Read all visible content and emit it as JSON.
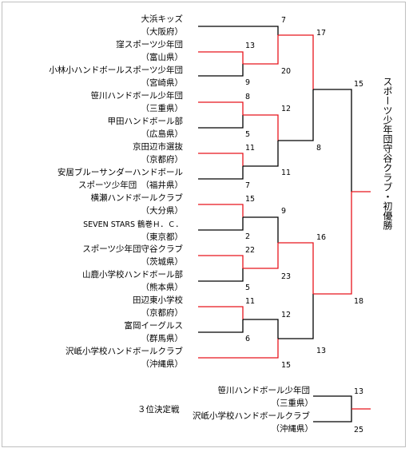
{
  "teams": [
    {
      "name": "大浜キッズ",
      "pref": "（大阪府）"
    },
    {
      "name": "窪スポーツ少年団",
      "pref": "（富山県）"
    },
    {
      "name": "小林小ハンドボールスポーツ少年団",
      "pref": "（宮崎県）"
    },
    {
      "name": "笹川ハンドボール少年団",
      "pref": "（三重県）"
    },
    {
      "name": "甲田ハンドボール部",
      "pref": "（広島県）"
    },
    {
      "name": "京田辺市選抜",
      "pref": "（京都府）"
    },
    {
      "name": "安居ブルーサンダーハンドボール",
      "pref": "スポーツ少年団　（福井県）"
    },
    {
      "name": "横瀬ハンドボールクラブ",
      "pref": "（大分県）"
    },
    {
      "name": "SEVEN STARS 鶴巻Ｈ．Ｃ．",
      "pref": "（東京都）"
    },
    {
      "name": "スポーツ少年団守谷クラブ",
      "pref": "（茨城県）"
    },
    {
      "name": "山鹿小学校ハンドボール部",
      "pref": "（熊本県）"
    },
    {
      "name": "田辺東小学校",
      "pref": "（京都府）"
    },
    {
      "name": "富岡イーグルス",
      "pref": "（群馬県）"
    },
    {
      "name": "沢岻小学校ハンドボールクラブ",
      "pref": "（沖縄県）"
    }
  ],
  "scores": {
    "r1_a1": "7",
    "r1_a2": "13",
    "r1_a3": "9",
    "r1_b1": "8",
    "r1_b2": "5",
    "r1_c1": "11",
    "r1_c2": "7",
    "r1_d1": "15",
    "r1_d2": "2",
    "r1_e1": "22",
    "r1_e2": "5",
    "r1_f1": "11",
    "r1_f2": "6",
    "r2_a1": "17",
    "r2_a2": "20",
    "r2_b1": "12",
    "r2_b2": "11",
    "r2_c1": "9",
    "r2_c2": "23",
    "r2_d1": "12",
    "r2_d2": "13",
    "r3_top1": "8",
    "r3_bot1": "16",
    "r3_bot2": "15",
    "final_top": "15",
    "final_bot": "18",
    "third_1": "13",
    "third_2": "25"
  },
  "champion": "スポーツ少年団守谷クラブ・初優勝",
  "third_place": {
    "title": "３位決定戦",
    "team1": {
      "name": "笹川ハンドボール少年団",
      "pref": "（三重県）"
    },
    "team2": {
      "name": "沢岻小学校ハンドボールクラブ",
      "pref": "（沖縄県）"
    }
  },
  "colors": {
    "winner_line": "#e8141c",
    "line": "#000000"
  }
}
